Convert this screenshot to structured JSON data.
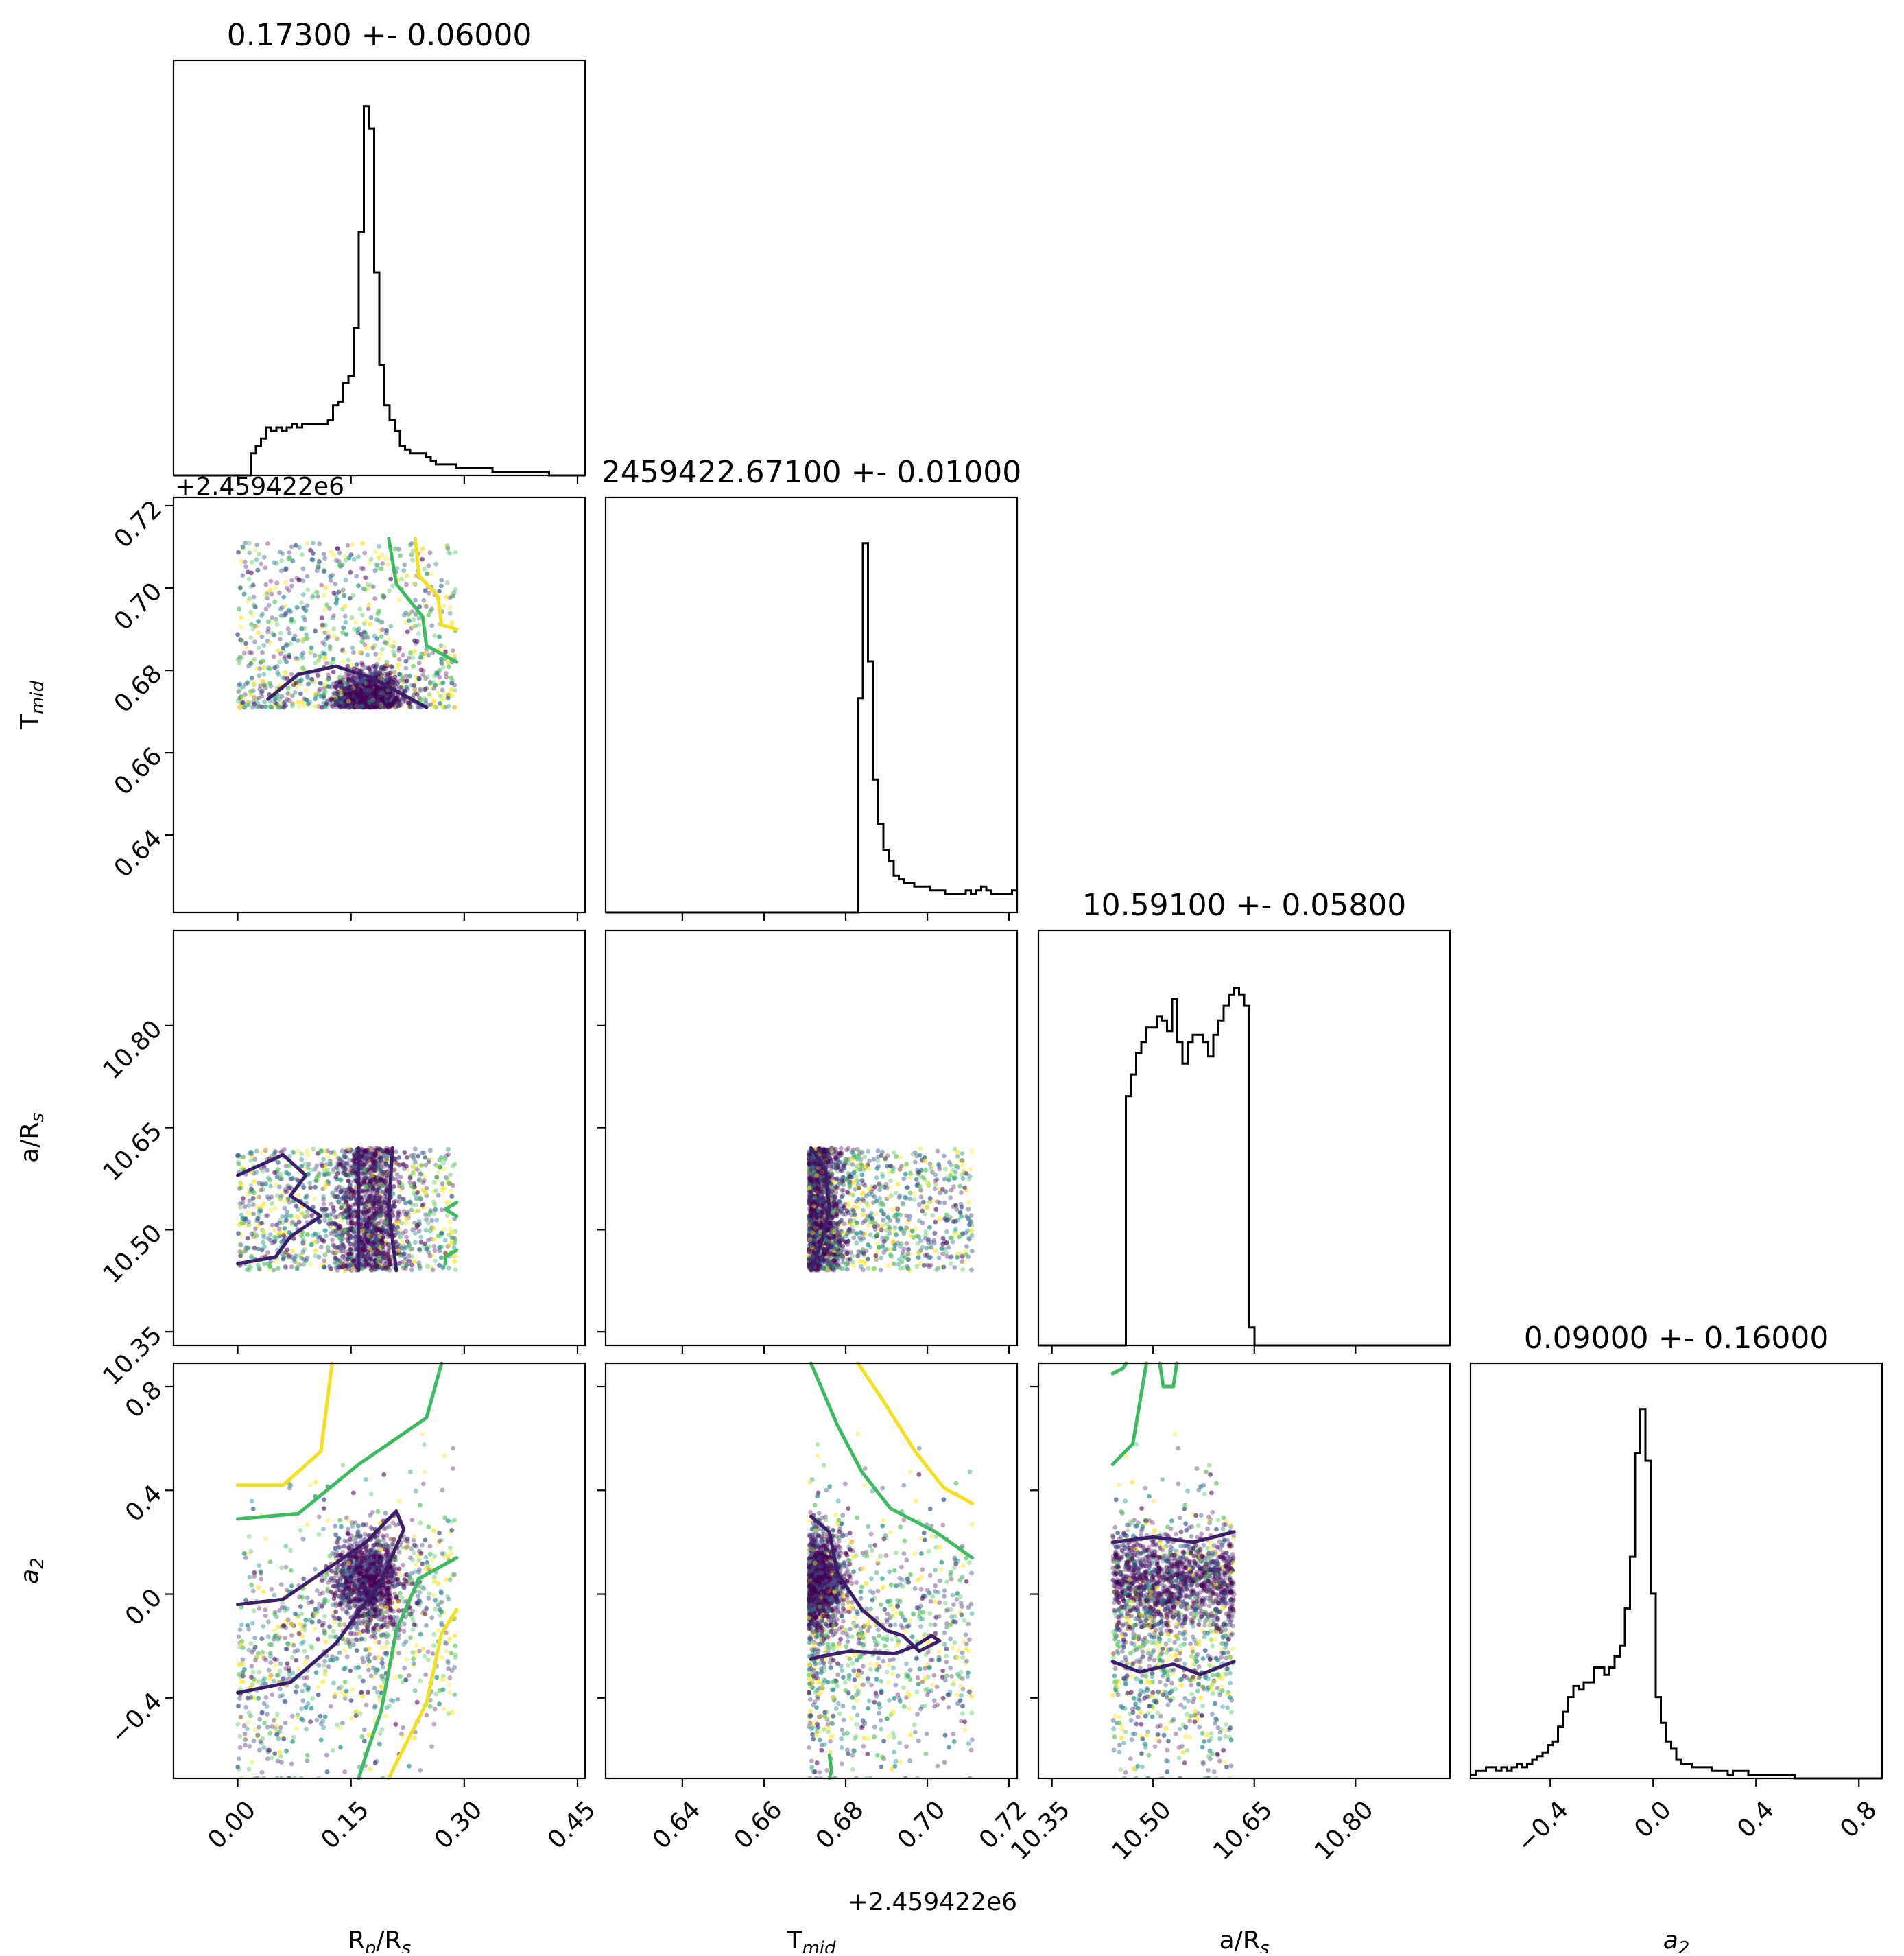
{
  "chart_data": {
    "type": "corner",
    "parameters": [
      {
        "key": "rp",
        "label_main": "R",
        "label_sub1": "p",
        "label_mid": "/R",
        "label_sub2": "s",
        "title": "0.17300 +- 0.06000",
        "range": [
          -0.085,
          0.46
        ],
        "ticks": [
          0.0,
          0.15,
          0.3,
          0.45
        ],
        "tick_labels": [
          "0.00",
          "0.15",
          "0.30",
          "0.45"
        ],
        "offset_text": ""
      },
      {
        "key": "tmid",
        "label_main": "T",
        "label_sub1": "mid",
        "label_mid": "",
        "label_sub2": "",
        "title": "2459422.67100 +- 0.01000",
        "range": [
          0.6212,
          0.722
        ],
        "ticks": [
          0.64,
          0.66,
          0.68,
          0.7,
          0.72
        ],
        "tick_labels": [
          "0.64",
          "0.66",
          "0.68",
          "0.70",
          "0.72"
        ],
        "offset_text": "+2.459422e6"
      },
      {
        "key": "ars",
        "label_main": "a/R",
        "label_sub1": "s",
        "label_mid": "",
        "label_sub2": "",
        "title": "10.59100 +- 0.05800",
        "range": [
          10.33,
          10.94
        ],
        "ticks": [
          10.35,
          10.5,
          10.65,
          10.8
        ],
        "tick_labels": [
          "10.35",
          "10.50",
          "10.65",
          "10.80"
        ],
        "offset_text": ""
      },
      {
        "key": "a2",
        "label_main": "a",
        "label_sub1": "2",
        "label_mid": "",
        "label_sub2": "",
        "title": "0.09000 +- 0.16000",
        "range": [
          -0.71,
          0.89
        ],
        "ticks": [
          -0.4,
          0.0,
          0.4,
          0.8
        ],
        "tick_labels": [
          "−0.4",
          "0.0",
          "0.4",
          "0.8"
        ],
        "offset_text": ""
      }
    ],
    "histograms": {
      "rp": {
        "bin_edges_range": [
          -0.085,
          0.46
        ],
        "counts": [
          0,
          0,
          0,
          0,
          0,
          0,
          0,
          0,
          0,
          0,
          0,
          0,
          0,
          0,
          0,
          0.06,
          0.08,
          0.1,
          0.13,
          0.12,
          0.13,
          0.12,
          0.13,
          0.14,
          0.13,
          0.14,
          0.14,
          0.14,
          0.14,
          0.14,
          0.15,
          0.19,
          0.2,
          0.25,
          0.27,
          0.4,
          0.66,
          1.0,
          0.94,
          0.55,
          0.3,
          0.19,
          0.15,
          0.12,
          0.08,
          0.07,
          0.06,
          0.06,
          0.06,
          0.05,
          0.04,
          0.03,
          0.03,
          0.03,
          0.03,
          0.02,
          0.02,
          0.02,
          0.02,
          0.02,
          0.02,
          0.02,
          0.01,
          0.01,
          0.01,
          0.01,
          0.01,
          0.01,
          0.01,
          0.01,
          0.01,
          0.01,
          0.01,
          0.0,
          0.0,
          0.0,
          0.0,
          0.0,
          0.0,
          0.0
        ]
      },
      "tmid": {
        "bin_edges_range": [
          0.6212,
          0.722
        ],
        "counts": [
          0,
          0,
          0,
          0,
          0,
          0,
          0,
          0,
          0,
          0,
          0,
          0,
          0,
          0,
          0,
          0,
          0,
          0,
          0,
          0,
          0,
          0,
          0,
          0,
          0,
          0,
          0,
          0,
          0,
          0,
          0,
          0,
          0,
          0,
          0,
          0,
          0,
          0,
          0,
          0,
          0,
          0,
          0,
          0,
          0,
          0,
          0,
          0,
          0,
          0.58,
          1.0,
          0.68,
          0.36,
          0.24,
          0.17,
          0.14,
          0.1,
          0.09,
          0.08,
          0.08,
          0.07,
          0.07,
          0.07,
          0.06,
          0.06,
          0.06,
          0.05,
          0.05,
          0.05,
          0.05,
          0.06,
          0.05,
          0.06,
          0.07,
          0.06,
          0.05,
          0.05,
          0.05,
          0.05,
          0.06
        ]
      },
      "ars": {
        "bin_edges_range": [
          10.33,
          10.94
        ],
        "counts": [
          0,
          0,
          0,
          0,
          0,
          0,
          0,
          0,
          0,
          0,
          0,
          0,
          0,
          0,
          0,
          0,
          0,
          0.69,
          0.75,
          0.81,
          0.84,
          0.88,
          0.88,
          0.91,
          0.9,
          0.87,
          0.96,
          0.84,
          0.78,
          0.84,
          0.86,
          0.86,
          0.84,
          0.8,
          0.86,
          0.9,
          0.94,
          0.97,
          0.99,
          0.97,
          0.94,
          0.05,
          0,
          0,
          0,
          0,
          0,
          0,
          0,
          0,
          0,
          0,
          0,
          0,
          0,
          0,
          0,
          0,
          0,
          0,
          0,
          0,
          0,
          0,
          0,
          0,
          0,
          0,
          0,
          0,
          0,
          0,
          0,
          0,
          0,
          0,
          0,
          0,
          0,
          0
        ]
      },
      "a2": {
        "bin_edges_range": [
          -0.71,
          0.89
        ],
        "counts": [
          0.01,
          0.02,
          0.02,
          0.03,
          0.03,
          0.02,
          0.03,
          0.02,
          0.03,
          0.04,
          0.03,
          0.04,
          0.05,
          0.06,
          0.07,
          0.09,
          0.1,
          0.14,
          0.18,
          0.22,
          0.25,
          0.24,
          0.26,
          0.26,
          0.3,
          0.3,
          0.28,
          0.3,
          0.33,
          0.36,
          0.46,
          0.6,
          0.88,
          1.0,
          0.86,
          0.5,
          0.22,
          0.15,
          0.1,
          0.08,
          0.05,
          0.04,
          0.04,
          0.03,
          0.03,
          0.03,
          0.03,
          0.02,
          0.02,
          0.02,
          0.01,
          0.02,
          0.02,
          0.02,
          0.01,
          0.01,
          0.01,
          0.01,
          0.01,
          0.01,
          0.01,
          0.01,
          0.01,
          0.0,
          0.0,
          0.0,
          0.0,
          0.0,
          0.0,
          0.0,
          0.0,
          0.0,
          0.0,
          0.0,
          0.0,
          0.0,
          0.0,
          0.0,
          0.0,
          0.0
        ]
      }
    },
    "scatter_panels": [
      {
        "row": "tmid",
        "col": "rp"
      },
      {
        "row": "ars",
        "col": "rp"
      },
      {
        "row": "ars",
        "col": "tmid"
      },
      {
        "row": "a2",
        "col": "rp"
      },
      {
        "row": "a2",
        "col": "tmid"
      },
      {
        "row": "a2",
        "col": "ars"
      }
    ],
    "sample_support": {
      "rp": [
        0.0,
        0.29
      ],
      "tmid": [
        0.671,
        0.711
      ],
      "ars": [
        10.44,
        10.62
      ],
      "a2": [
        -0.71,
        0.89
      ]
    },
    "colormap": [
      "#440154",
      "#3b528b",
      "#21918c",
      "#5ec962",
      "#fde725"
    ],
    "contour_colors": [
      "#3b1f6b",
      "#3dbb61",
      "#f6e01e"
    ],
    "grid": false
  }
}
